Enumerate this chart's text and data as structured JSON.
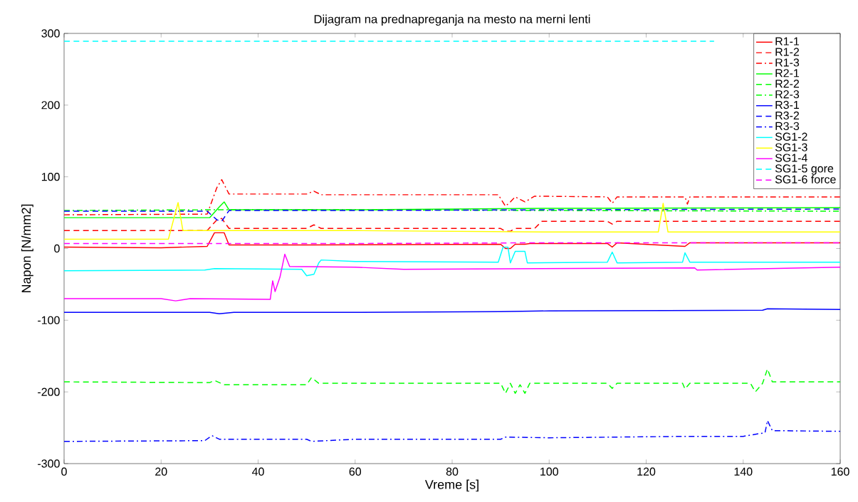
{
  "chart_data": {
    "type": "line",
    "title": "Dijagram na prednapreganja na mesto na merni lenti",
    "xlabel": "Vreme [s]",
    "ylabel": "Napon [N/mm2]",
    "xlim": [
      0,
      160
    ],
    "ylim": [
      -300,
      300
    ],
    "xticks": [
      0,
      20,
      40,
      60,
      80,
      100,
      120,
      140,
      160
    ],
    "yticks": [
      -300,
      -200,
      -100,
      0,
      100,
      200,
      300
    ],
    "grid": false,
    "legend": "top right",
    "marker": "none",
    "series": [
      {
        "name": "R1-1",
        "color": "#ff0000",
        "line_style": "solid",
        "x": [
          0,
          20,
          29.5,
          31,
          33,
          34,
          50,
          90,
          91,
          92,
          93,
          95,
          96,
          112,
          113,
          114,
          128,
          129,
          160
        ],
        "values": [
          2,
          1,
          3,
          22,
          22,
          5,
          5,
          6,
          0,
          0,
          6,
          6,
          7,
          7,
          2,
          8,
          3,
          8,
          8
        ]
      },
      {
        "name": "R1-2",
        "color": "#ff0000",
        "line_style": "dashed",
        "x": [
          0,
          29.5,
          31.5,
          32.5,
          34,
          50,
          51.5,
          53,
          90,
          91,
          92,
          93,
          97,
          98.5,
          112,
          113,
          114,
          160
        ],
        "values": [
          25,
          25,
          40,
          42,
          28,
          28,
          33,
          28,
          28,
          24,
          24,
          28,
          28,
          38,
          38,
          34,
          38,
          38
        ]
      },
      {
        "name": "R1-3",
        "color": "#ff0000",
        "line_style": "dashdot",
        "x": [
          0,
          29.5,
          31.5,
          32.5,
          34,
          50,
          51.5,
          53,
          89.5,
          91,
          92,
          93,
          95,
          97,
          112,
          113,
          114,
          128,
          128.5,
          129,
          160
        ],
        "values": [
          47,
          48,
          85,
          96,
          76,
          76,
          80,
          75,
          75,
          59,
          65,
          72,
          65,
          73,
          72,
          63,
          72,
          72,
          62,
          72,
          72
        ]
      },
      {
        "name": "R2-1",
        "color": "#00ff00",
        "line_style": "solid",
        "x": [
          0,
          30,
          32,
          33,
          34,
          60,
          100,
          160
        ],
        "values": [
          43,
          43,
          58,
          65,
          54,
          54,
          56,
          57
        ]
      },
      {
        "name": "R2-2",
        "color": "#00ff00",
        "line_style": "dashed",
        "x": [
          0,
          30,
          31,
          33,
          50,
          51,
          52.5,
          60,
          90,
          91,
          92,
          93,
          94,
          95,
          96,
          112,
          113,
          114,
          127.5,
          128,
          129,
          141.5,
          142.5,
          144,
          145,
          146,
          160
        ],
        "values": [
          -186,
          -187,
          -184,
          -190,
          -190,
          -180,
          -188,
          -188,
          -188,
          -202,
          -188,
          -202,
          -190,
          -202,
          -188,
          -188,
          -195,
          -188,
          -188,
          -196,
          -188,
          -188,
          -200,
          -188,
          -168,
          -186,
          -186
        ]
      },
      {
        "name": "R2-3",
        "color": "#00ff00",
        "line_style": "dashdot",
        "x": [
          0,
          30,
          60,
          100,
          160
        ],
        "values": [
          53,
          54,
          54,
          53,
          52
        ]
      },
      {
        "name": "R3-1",
        "color": "#0000ff",
        "line_style": "solid",
        "x": [
          0,
          30,
          32,
          35,
          60,
          90,
          100,
          144,
          145,
          160
        ],
        "values": [
          -89,
          -89,
          -91,
          -89,
          -89,
          -88,
          -87,
          -86,
          -84,
          -85
        ]
      },
      {
        "name": "R3-2",
        "color": "#0000ff",
        "line_style": "dashed",
        "x": [
          0,
          29.5,
          31.5,
          32.5,
          34,
          60,
          100,
          160
        ],
        "values": [
          52,
          52,
          40,
          38,
          53,
          53,
          54,
          55
        ]
      },
      {
        "name": "R3-3",
        "color": "#0000ff",
        "line_style": "dashdot",
        "x": [
          0,
          29,
          30.5,
          32,
          50,
          51,
          60,
          90,
          91,
          100,
          128,
          140,
          143.5,
          144.5,
          145,
          146,
          160
        ],
        "values": [
          -269,
          -268,
          -261,
          -266,
          -266,
          -269,
          -266,
          -266,
          -263,
          -264,
          -262,
          -262,
          -258,
          -257,
          -240,
          -254,
          -255
        ]
      },
      {
        "name": "SG1-2",
        "color": "#00ffff",
        "line_style": "solid",
        "x": [
          0,
          29,
          31,
          49,
          50,
          51.5,
          52.5,
          53,
          60,
          89.5,
          90.5,
          91.5,
          92,
          93,
          95,
          95.5,
          112,
          113,
          114,
          127.5,
          128,
          129,
          160
        ],
        "values": [
          -31,
          -30,
          -28,
          -29,
          -38,
          -36,
          -20,
          -16,
          -18,
          -19,
          2,
          2,
          -20,
          -4,
          -4,
          -20,
          -19,
          -5,
          -20,
          -19,
          -6,
          -19,
          -19
        ]
      },
      {
        "name": "SG1-3",
        "color": "#ffff00",
        "line_style": "solid",
        "x": [
          0,
          21.5,
          23.5,
          24.5,
          60,
          100,
          122.5,
          123.5,
          124.5,
          160
        ],
        "values": [
          13,
          13,
          64,
          25,
          25,
          23,
          23,
          63,
          23,
          23
        ]
      },
      {
        "name": "SG1-4",
        "color": "#ff00ff",
        "line_style": "solid",
        "x": [
          0,
          20,
          23,
          26,
          42.5,
          43,
          43.5,
          44.5,
          45.5,
          46.5,
          60,
          70,
          100,
          130,
          130.5,
          160
        ],
        "values": [
          -70,
          -70,
          -73,
          -70,
          -71,
          -45,
          -60,
          -40,
          -8,
          -25,
          -26,
          -29,
          -28,
          -27,
          -30,
          -26
        ]
      },
      {
        "name": "SG1-5 gore",
        "color": "#00ffff",
        "line_style": "dashed",
        "x": [
          0,
          134
        ],
        "values": [
          289,
          289
        ]
      },
      {
        "name": "SG1-6 force",
        "color": "#ff00ff",
        "line_style": "dashed",
        "x": [
          0,
          60,
          100,
          160
        ],
        "values": [
          7,
          7,
          8,
          8
        ]
      }
    ]
  }
}
